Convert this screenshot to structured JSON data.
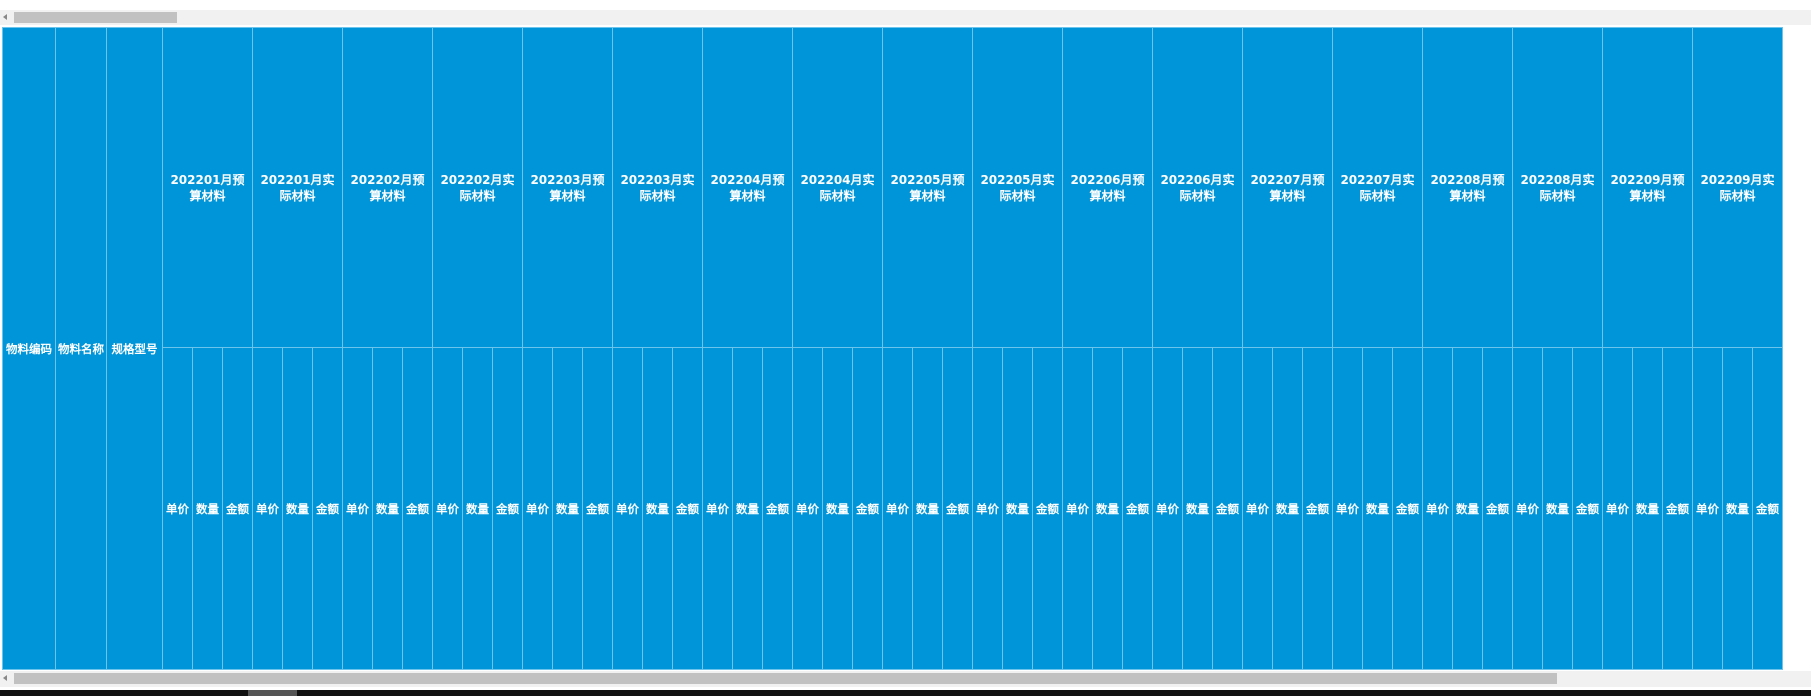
{
  "table": {
    "fixed_columns": [
      "物料编码",
      "物料名称",
      "规格型号"
    ],
    "groups": [
      {
        "title": "202201月预算材料",
        "columns": [
          "单价",
          "数量",
          "金额"
        ]
      },
      {
        "title": "202201月实际材料",
        "columns": [
          "单价",
          "数量",
          "金额"
        ]
      },
      {
        "title": "202202月预算材料",
        "columns": [
          "单价",
          "数量",
          "金额"
        ]
      },
      {
        "title": "202202月实际材料",
        "columns": [
          "单价",
          "数量",
          "金额"
        ]
      },
      {
        "title": "202203月预算材料",
        "columns": [
          "单价",
          "数量",
          "金额"
        ]
      },
      {
        "title": "202203月实际材料",
        "columns": [
          "单价",
          "数量",
          "金额"
        ]
      },
      {
        "title": "202204月预算材料",
        "columns": [
          "单价",
          "数量",
          "金额"
        ]
      },
      {
        "title": "202204月实际材料",
        "columns": [
          "单价",
          "数量",
          "金额"
        ]
      },
      {
        "title": "202205月预算材料",
        "columns": [
          "单价",
          "数量",
          "金额"
        ]
      },
      {
        "title": "202205月实际材料",
        "columns": [
          "单价",
          "数量",
          "金额"
        ]
      },
      {
        "title": "202206月预算材料",
        "columns": [
          "单价",
          "数量",
          "金额"
        ]
      },
      {
        "title": "202206月实际材料",
        "columns": [
          "单价",
          "数量",
          "金额"
        ]
      },
      {
        "title": "202207月预算材料",
        "columns": [
          "单价",
          "数量",
          "金额"
        ]
      },
      {
        "title": "202207月实际材料",
        "columns": [
          "单价",
          "数量",
          "金额"
        ]
      },
      {
        "title": "202208月预算材料",
        "columns": [
          "单价",
          "数量",
          "金额"
        ]
      },
      {
        "title": "202208月实际材料",
        "columns": [
          "单价",
          "数量",
          "金额"
        ]
      },
      {
        "title": "202209月预算材料",
        "columns": [
          "单价",
          "数量",
          "金额"
        ]
      },
      {
        "title": "202209月实际材料",
        "columns": [
          "单价",
          "数量",
          "金额"
        ]
      }
    ]
  }
}
